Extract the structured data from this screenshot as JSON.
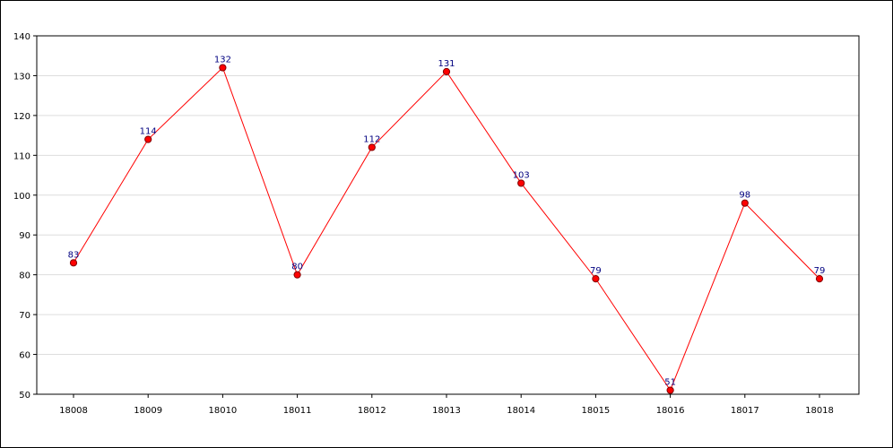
{
  "chart_data": {
    "type": "line",
    "categories": [
      "18008",
      "18009",
      "18010",
      "18011",
      "18012",
      "18013",
      "18014",
      "18015",
      "18016",
      "18017",
      "18018"
    ],
    "values": [
      83,
      114,
      132,
      80,
      112,
      131,
      103,
      79,
      51,
      98,
      79
    ],
    "ylim": [
      50,
      140
    ],
    "yticks": [
      50,
      60,
      70,
      80,
      90,
      100,
      110,
      120,
      130,
      140
    ],
    "grid": true,
    "line_color": "#ff0000",
    "marker_color": "#ff0000",
    "label_color": "#000080"
  }
}
